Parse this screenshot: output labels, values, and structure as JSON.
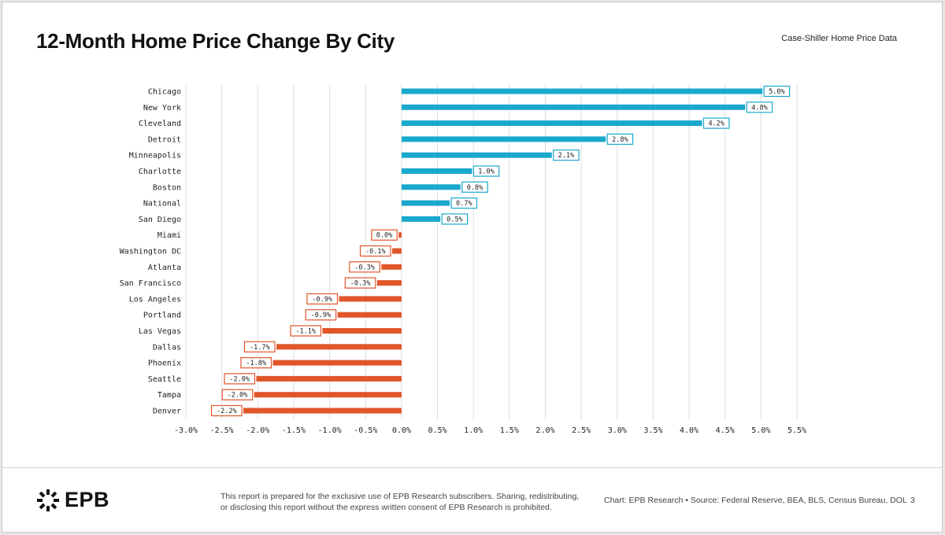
{
  "header": {
    "title": "12-Month Home Price Change By City",
    "subtitle": "Case-Shiller Home Price Data"
  },
  "footer": {
    "brand": "EPB",
    "disclaimer_line1": "This report is prepared for the exclusive use of EPB Research subscribers. Sharing, redistributing,",
    "disclaimer_line2": "or disclosing this report without the express written consent of EPB Research is prohibited.",
    "source": "Chart: EPB Research  •  Source: Federal Reserve, BEA, BLS, Census Bureau, DOL",
    "page_number": "3",
    "icon": "sunburst-logo-icon"
  },
  "colors": {
    "positive": "#1aa8cc",
    "negative": "#e0562a",
    "grid": "#dddddd",
    "text": "#222222"
  },
  "chart_data": {
    "type": "bar",
    "orientation": "horizontal",
    "title": "12-Month Home Price Change By City",
    "xlabel": "",
    "ylabel": "",
    "xlim": [
      -3.0,
      5.5
    ],
    "grid": true,
    "x_ticks": [
      "-3.0%",
      "-2.5%",
      "-2.0%",
      "-1.5%",
      "-1.0%",
      "-0.5%",
      "0.0%",
      "0.5%",
      "1.0%",
      "1.5%",
      "2.0%",
      "2.5%",
      "3.0%",
      "3.5%",
      "4.0%",
      "4.5%",
      "5.0%",
      "5.5%"
    ],
    "categories": [
      "Chicago",
      "New York",
      "Cleveland",
      "Detroit",
      "Minneapolis",
      "Charlotte",
      "Boston",
      "National",
      "San Diego",
      "Miami",
      "Washington DC",
      "Atlanta",
      "San Francisco",
      "Los Angeles",
      "Portland",
      "Las Vegas",
      "Dallas",
      "Phoenix",
      "Seattle",
      "Tampa",
      "Denver"
    ],
    "values": [
      5.02,
      4.78,
      4.18,
      2.84,
      2.09,
      0.98,
      0.82,
      0.67,
      0.54,
      -0.04,
      -0.13,
      -0.28,
      -0.34,
      -0.87,
      -0.89,
      -1.1,
      -1.74,
      -1.79,
      -2.02,
      -2.05,
      -2.2
    ],
    "labels": [
      "5.0%",
      "4.8%",
      "4.2%",
      "2.8%",
      "2.1%",
      "1.0%",
      "0.8%",
      "0.7%",
      "0.5%",
      "0.0%",
      "-0.1%",
      "-0.3%",
      "-0.3%",
      "-0.9%",
      "-0.9%",
      "-1.1%",
      "-1.7%",
      "-1.8%",
      "-2.0%",
      "-2.0%",
      "-2.2%"
    ]
  }
}
